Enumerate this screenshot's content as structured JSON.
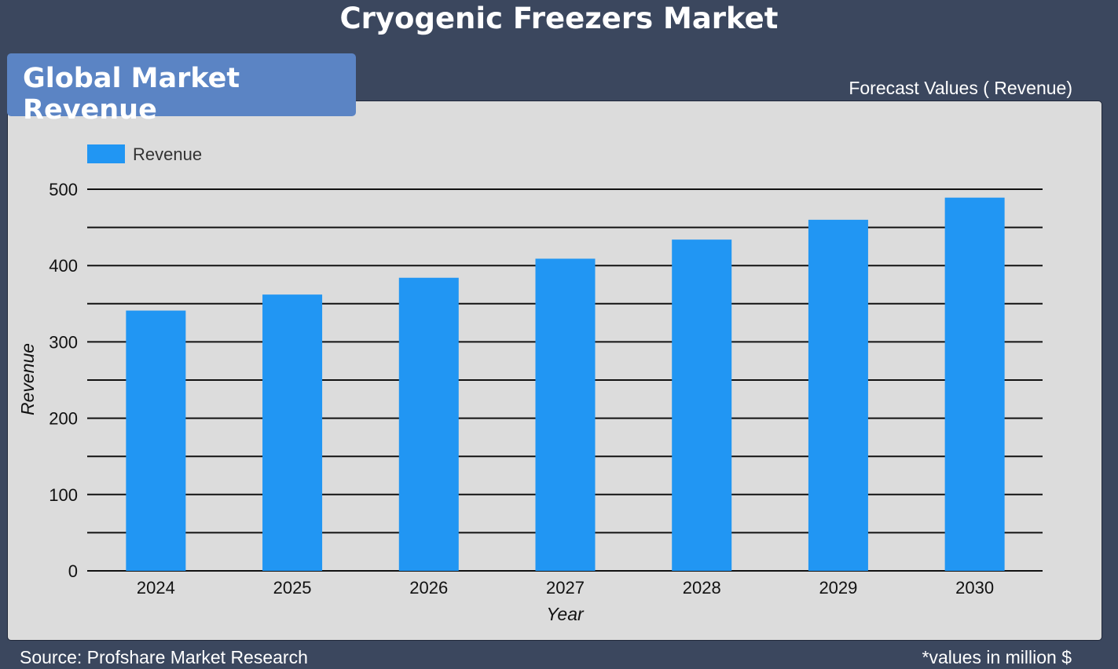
{
  "header": {
    "title": "Cryogenic Freezers Market",
    "badge": "Global Market Revenue",
    "forecast_label": "Forecast Values ( Revenue)"
  },
  "footer": {
    "source": "Source: Profshare Market Research",
    "note": "*values in million $"
  },
  "colors": {
    "background": "#3b475e",
    "panel": "#dcdcdc",
    "badge": "#5b84c4",
    "bar": "#2196f3"
  },
  "chart_data": {
    "type": "bar",
    "categories": [
      "2024",
      "2025",
      "2026",
      "2027",
      "2028",
      "2029",
      "2030"
    ],
    "series": [
      {
        "name": "Revenue",
        "values": [
          341,
          362,
          384,
          409,
          434,
          460,
          489
        ]
      }
    ],
    "xlabel": "Year",
    "ylabel": "Revenue",
    "ylim": [
      0,
      500
    ],
    "yticks": [
      0,
      100,
      200,
      300,
      400,
      500
    ],
    "grid": true,
    "legend": "top-left"
  }
}
